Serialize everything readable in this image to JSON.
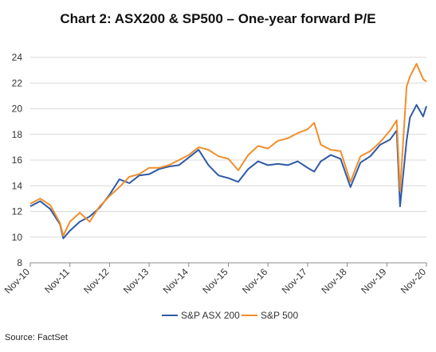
{
  "title": "Chart 2: ASX200 &  SP500 – One-year forward P/E",
  "source": "Source: FactSet",
  "chart_data": {
    "type": "line",
    "title": "Chart 2: ASX200 &  SP500 – One-year forward P/E",
    "xlabel": "",
    "ylabel": "",
    "x_start": "2010-11",
    "x_end": "2020-11",
    "x_ticks": [
      "Nov-10",
      "Nov-11",
      "Nov-12",
      "Nov-13",
      "Nov-14",
      "Nov-15",
      "Nov-16",
      "Nov-17",
      "Nov-18",
      "Nov-19",
      "Nov-20"
    ],
    "y_ticks": [
      8,
      10,
      12,
      14,
      16,
      18,
      20,
      22,
      24
    ],
    "ylim": [
      8,
      24
    ],
    "grid": "horizontal",
    "legend_position": "bottom",
    "x": [
      "2010-11",
      "2011-02",
      "2011-05",
      "2011-08",
      "2011-09",
      "2011-11",
      "2012-02",
      "2012-05",
      "2012-08",
      "2012-11",
      "2013-02",
      "2013-05",
      "2013-08",
      "2013-11",
      "2014-02",
      "2014-05",
      "2014-08",
      "2014-11",
      "2015-02",
      "2015-05",
      "2015-08",
      "2015-11",
      "2016-02",
      "2016-05",
      "2016-08",
      "2016-11",
      "2017-02",
      "2017-05",
      "2017-08",
      "2017-11",
      "2018-01",
      "2018-03",
      "2018-06",
      "2018-09",
      "2018-12",
      "2019-03",
      "2019-06",
      "2019-09",
      "2019-12",
      "2020-02",
      "2020-03",
      "2020-05",
      "2020-06",
      "2020-08",
      "2020-10",
      "2020-11"
    ],
    "series": [
      {
        "name": "S&P ASX 200",
        "color": "#2E5AA8",
        "values": [
          12.4,
          12.8,
          12.2,
          11.0,
          9.9,
          10.5,
          11.2,
          11.6,
          12.3,
          13.3,
          14.5,
          14.2,
          14.8,
          14.9,
          15.3,
          15.5,
          15.6,
          16.2,
          16.8,
          15.6,
          14.8,
          14.6,
          14.3,
          15.3,
          15.9,
          15.6,
          15.7,
          15.6,
          15.9,
          15.4,
          15.1,
          15.9,
          16.4,
          16.1,
          13.9,
          15.8,
          16.3,
          17.2,
          17.6,
          18.3,
          12.4,
          17.5,
          19.3,
          20.3,
          19.4,
          20.2
        ]
      },
      {
        "name": "S&P 500",
        "color": "#F28E2B",
        "values": [
          12.6,
          13.0,
          12.5,
          11.1,
          10.1,
          11.2,
          11.9,
          11.2,
          12.4,
          13.2,
          13.9,
          14.7,
          14.9,
          15.4,
          15.4,
          15.6,
          16.0,
          16.4,
          17.0,
          16.8,
          16.3,
          16.1,
          15.2,
          16.4,
          17.1,
          16.9,
          17.5,
          17.7,
          18.1,
          18.4,
          18.9,
          17.2,
          16.8,
          16.7,
          14.3,
          16.3,
          16.7,
          17.4,
          18.3,
          19.1,
          13.6,
          21.7,
          22.5,
          23.5,
          22.3,
          22.1
        ]
      }
    ]
  }
}
